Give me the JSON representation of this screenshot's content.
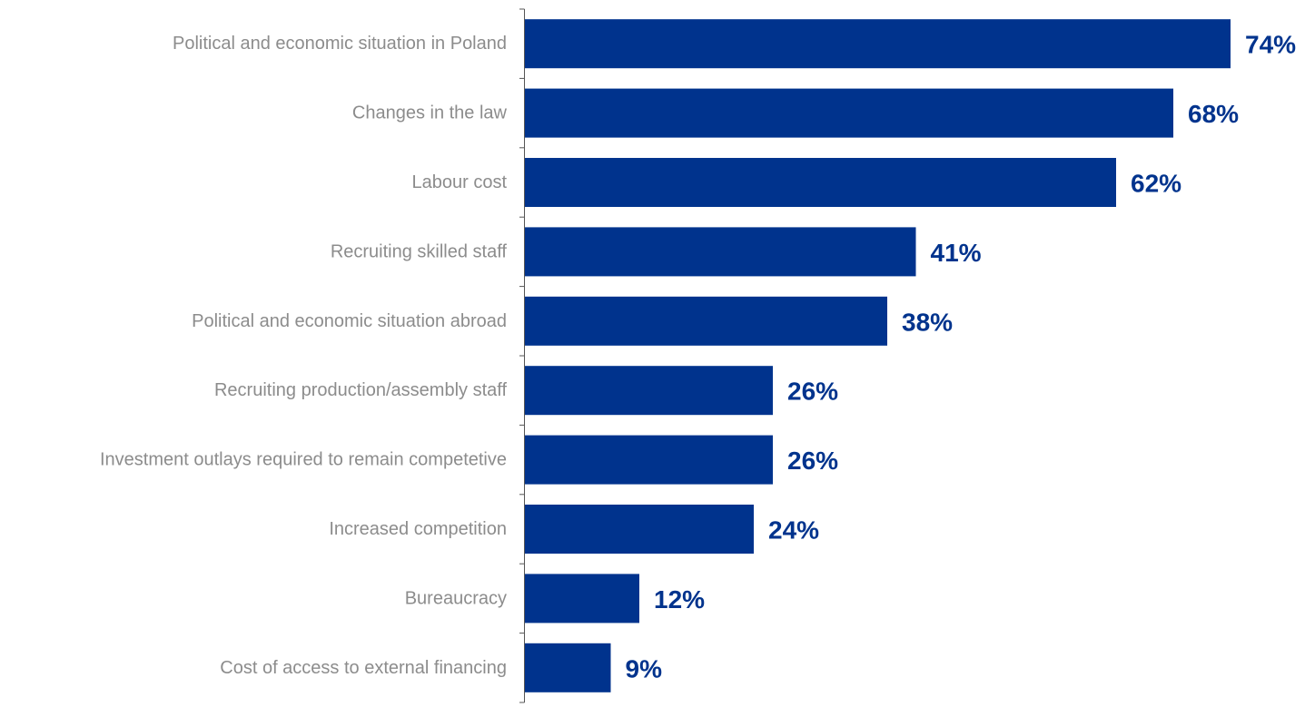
{
  "chart_data": {
    "type": "bar",
    "orientation": "horizontal",
    "categories": [
      "Political and economic situation in Poland",
      "Changes in the law",
      "Labour cost",
      "Recruiting skilled staff",
      "Political and economic situation abroad",
      "Recruiting production/assembly staff",
      "Investment outlays required to remain competetive",
      "Increased competition",
      "Bureaucracy",
      "Cost of access to external financing"
    ],
    "values": [
      74,
      68,
      62,
      41,
      38,
      26,
      26,
      24,
      12,
      9
    ],
    "value_labels": [
      "74%",
      "68%",
      "62%",
      "41%",
      "38%",
      "26%",
      "26%",
      "24%",
      "12%",
      "9%"
    ],
    "unit": "%",
    "xlim": [
      0,
      74
    ],
    "grid": false,
    "legend": "none",
    "bar_color": "#00338d",
    "label_color": "#00338d",
    "category_label_color": "#8c8c8c",
    "axis_color": "#555555"
  }
}
